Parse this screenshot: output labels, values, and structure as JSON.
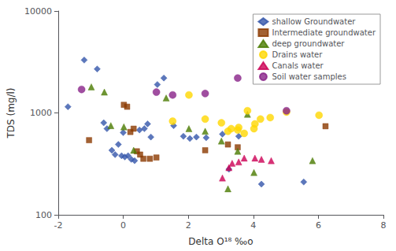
{
  "chart_data": {
    "type": "scatter",
    "xlabel": "Delta O¹⁸ ‰o",
    "ylabel": "TDS (mg/l)",
    "xlim": [
      -2,
      8
    ],
    "ylim": [
      100,
      10000
    ],
    "xticks": [
      -2,
      0,
      2,
      4,
      6,
      8
    ],
    "yticks": [
      100,
      1000,
      10000
    ],
    "log": "y",
    "grid": false,
    "legend": "upper right",
    "series": [
      {
        "name": "shallow Groundwater",
        "marker": "diamond",
        "color": "#3355AA",
        "x": [
          -1.7,
          -1.2,
          -0.8,
          -0.6,
          -0.5,
          -0.35,
          -0.25,
          -0.15,
          -0.05,
          0.0,
          0.05,
          0.15,
          0.25,
          0.35,
          0.5,
          0.65,
          0.75,
          0.85,
          1.05,
          1.25,
          1.55,
          1.85,
          2.05,
          2.25,
          2.55,
          3.05,
          3.25,
          3.55,
          4.25,
          5.55
        ],
        "values": [
          1150,
          3300,
          2700,
          800,
          700,
          430,
          390,
          490,
          380,
          640,
          370,
          380,
          350,
          340,
          680,
          700,
          780,
          580,
          1900,
          2200,
          750,
          590,
          560,
          580,
          570,
          620,
          280,
          590,
          200,
          210
        ]
      },
      {
        "name": "Intermediate groundwater",
        "marker": "square",
        "color": "#8B3A00",
        "x": [
          -1.05,
          0.02,
          0.12,
          0.22,
          0.32,
          0.42,
          0.52,
          0.62,
          0.82,
          1.02,
          2.52,
          3.22,
          3.52,
          6.22
        ],
        "values": [
          540,
          1200,
          1150,
          650,
          700,
          420,
          390,
          355,
          355,
          365,
          430,
          490,
          460,
          740
        ]
      },
      {
        "name": "deep groundwater",
        "marker": "triangle",
        "color": "#4A7A00",
        "x": [
          -0.98,
          -0.58,
          -0.38,
          0.02,
          0.32,
          1.32,
          2.02,
          2.52,
          3.02,
          3.22,
          3.52,
          3.82,
          4.02,
          5.82
        ],
        "values": [
          1800,
          1600,
          750,
          730,
          430,
          1400,
          700,
          660,
          530,
          180,
          420,
          970,
          260,
          340
        ]
      },
      {
        "name": "Drains water",
        "marker": "circle",
        "color": "#FFD700",
        "x": [
          1.52,
          2.02,
          2.52,
          3.02,
          3.22,
          3.32,
          3.52,
          3.55,
          3.72,
          3.82,
          4.02,
          4.05,
          4.22,
          4.52,
          5.02,
          6.02
        ],
        "values": [
          830,
          1500,
          870,
          800,
          660,
          700,
          680,
          720,
          630,
          1050,
          700,
          780,
          870,
          900,
          1020,
          950
        ]
      },
      {
        "name": "Canals water",
        "marker": "triangle",
        "color": "#CC0055",
        "x": [
          3.05,
          3.25,
          3.35,
          3.55,
          3.72,
          4.05,
          4.25,
          4.55
        ],
        "values": [
          230,
          290,
          320,
          330,
          360,
          360,
          350,
          340
        ]
      },
      {
        "name": "Soil water samples",
        "marker": "circle",
        "color": "#882288",
        "x": [
          -1.28,
          1.02,
          1.52,
          2.52,
          3.52,
          5.02
        ],
        "values": [
          1700,
          1600,
          1500,
          1550,
          2200,
          1050
        ]
      }
    ]
  }
}
